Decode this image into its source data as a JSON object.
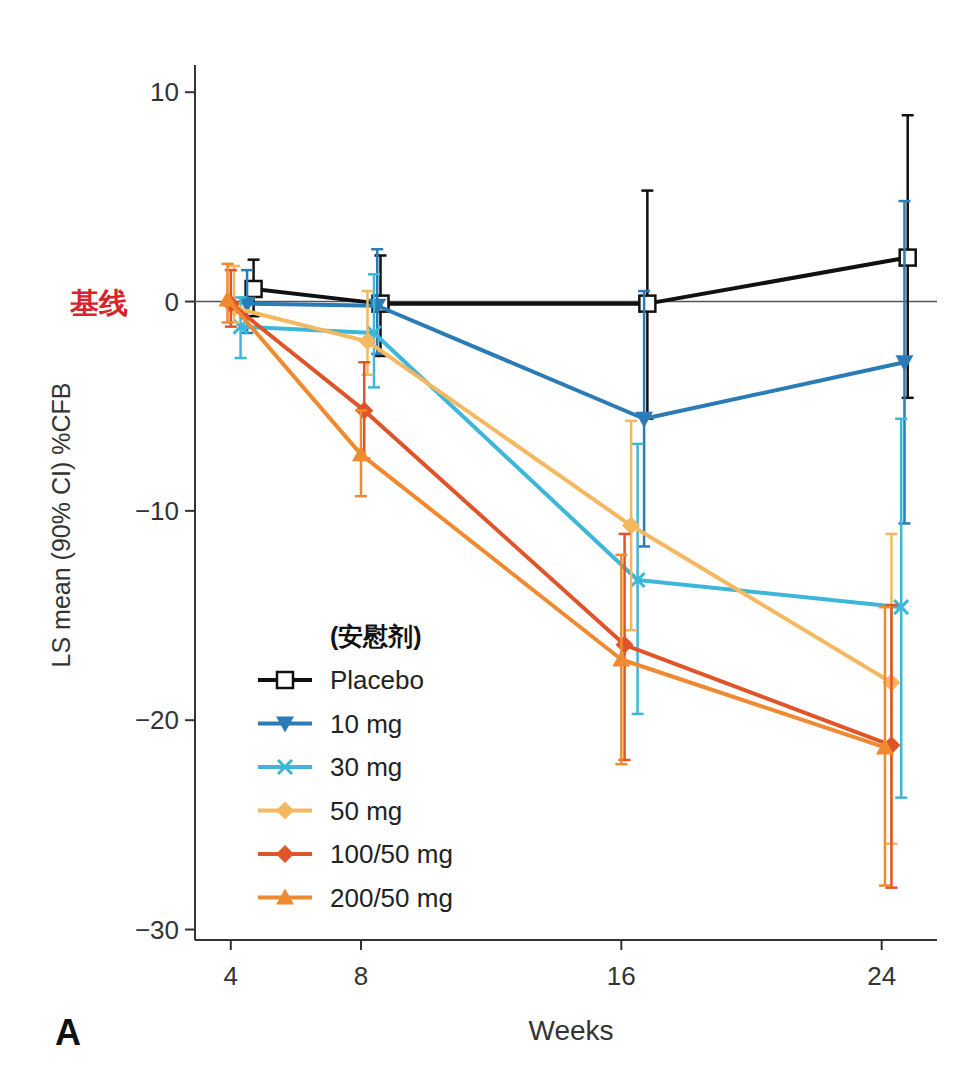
{
  "chart_data": {
    "type": "line",
    "y_label": "LS mean (90% CI) %CFB",
    "x_label": "Weeks",
    "annotations": [
      "基线",
      "(安慰剂)",
      "A"
    ],
    "xlim": [
      2.9,
      25.7
    ],
    "xticks": [
      4,
      8,
      16,
      24
    ],
    "ylim": [
      -30.5,
      11.3
    ],
    "yticks": [
      10,
      0,
      {
        "value": -10,
        "label": "−10"
      },
      {
        "value": -20,
        "label": "−20"
      },
      {
        "value": -30,
        "label": "−30"
      }
    ],
    "reference_lines": [
      0
    ],
    "grid": false,
    "legend": "lower left",
    "series": [
      {
        "name": "Placebo",
        "color": "#111111",
        "marker": "open-square",
        "x": [
          4.7,
          8.6,
          16.8,
          24.8
        ],
        "values": [
          0.6,
          -0.1,
          -0.1,
          2.1
        ],
        "ci_lower": [
          -0.7,
          -2.6,
          -5.6,
          -4.6
        ],
        "ci_upper": [
          2.0,
          2.2,
          5.3,
          8.9
        ]
      },
      {
        "name": "10 mg",
        "color": "#2b7bb6",
        "marker": "triangle-down",
        "x": [
          4.5,
          8.5,
          16.7,
          24.7
        ],
        "values": [
          -0.1,
          -0.2,
          -5.6,
          -2.9
        ],
        "ci_lower": [
          -1.5,
          -2.5,
          -11.7,
          -10.6
        ],
        "ci_upper": [
          1.5,
          2.5,
          0.5,
          4.8
        ]
      },
      {
        "name": "30 mg",
        "color": "#3db6d9",
        "marker": "x",
        "x": [
          4.3,
          8.4,
          16.5,
          24.6
        ],
        "values": [
          -1.2,
          -1.5,
          -13.3,
          -14.6
        ],
        "ci_lower": [
          -2.7,
          -4.1,
          -19.7,
          -23.7
        ],
        "ci_upper": [
          0.2,
          1.3,
          -6.8,
          -5.6
        ]
      },
      {
        "name": "50 mg",
        "color": "#f4b860",
        "marker": "diamond",
        "x": [
          4.1,
          8.2,
          16.3,
          24.3
        ],
        "values": [
          -0.3,
          -1.9,
          -10.7,
          -18.2
        ],
        "ci_lower": [
          -1.0,
          -3.5,
          -15.7,
          -25.9
        ],
        "ci_upper": [
          1.7,
          0.5,
          -5.7,
          -11.1
        ]
      },
      {
        "name": "100/50 mg",
        "color": "#e0542a",
        "marker": "diamond",
        "x": [
          4.0,
          8.1,
          16.1,
          24.3
        ],
        "values": [
          -0.1,
          -5.2,
          -16.4,
          -21.2
        ],
        "ci_lower": [
          -1.2,
          -7.5,
          -21.9,
          -28.0
        ],
        "ci_upper": [
          1.5,
          -2.9,
          -11.1,
          -14.5
        ]
      },
      {
        "name": "200/50 mg",
        "color": "#f08a30",
        "marker": "triangle-up",
        "x": [
          3.9,
          8.0,
          16.0,
          24.1
        ],
        "values": [
          0.1,
          -7.3,
          -17.1,
          -21.3
        ],
        "ci_lower": [
          -1.0,
          -9.3,
          -22.1,
          -27.9
        ],
        "ci_upper": [
          1.8,
          -5.2,
          -12.1,
          -14.6
        ]
      }
    ]
  }
}
